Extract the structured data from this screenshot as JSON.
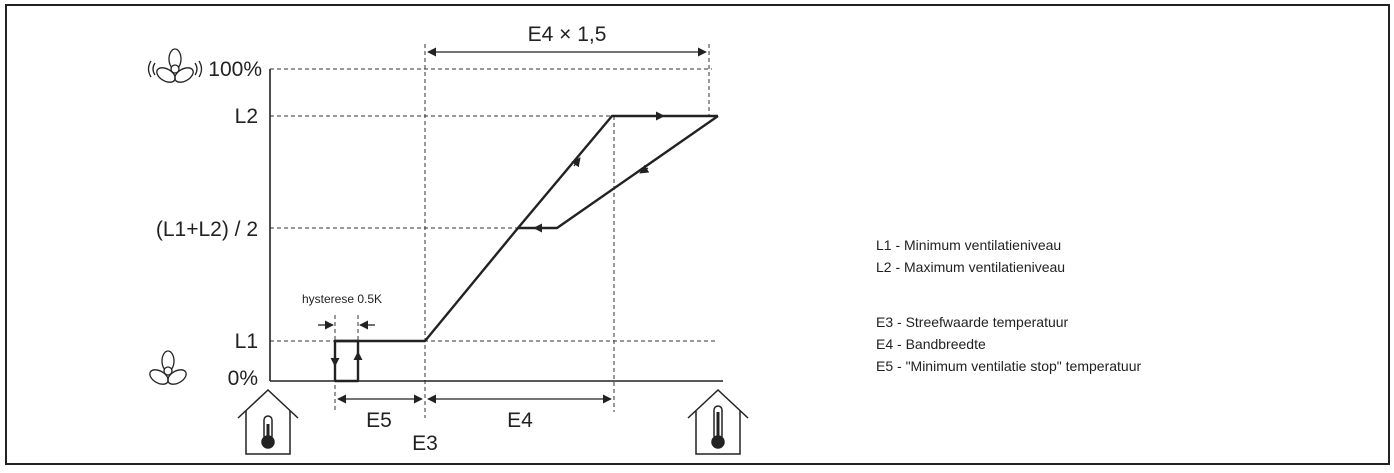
{
  "labels": {
    "y_100": "100%",
    "y_l2": "L2",
    "y_mid": "(L1+L2) / 2",
    "y_l1": "L1",
    "y_0": "0%",
    "top_span": "E4 × 1,5",
    "hysteresis": "hysterese 0.5K",
    "e5": "E5",
    "e4": "E4",
    "e3": "E3"
  },
  "legend": {
    "l1": "L1 - Minimum ventilatieniveau",
    "l2": "L2 - Maximum ventilatieniveau",
    "e3": "E3 - Streefwaarde temperatuur",
    "e4": "E4 - Bandbreedte",
    "e5": "E5 - \"Minimum ventilatie stop\" temperatuur"
  },
  "icons": {
    "fan_top": "fan-icon",
    "fan_bottom": "fan-icon",
    "house_left": "house-thermometer-icon",
    "house_right": "house-thermometer-icon"
  }
}
